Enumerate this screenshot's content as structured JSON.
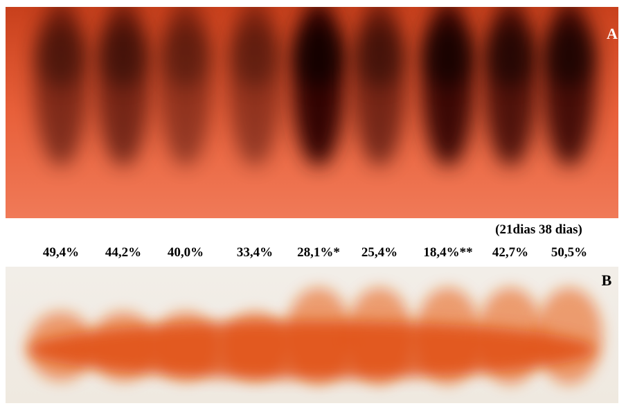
{
  "panel_a": {
    "label": "A"
  },
  "panel_b": {
    "label": "B"
  },
  "note": "(21dias 38 dias)",
  "lanes": [
    "49,4%",
    "44,2%",
    "40,0%",
    "33,4%",
    "28,1%*",
    "25,4%",
    "18,4%**",
    "42,7%",
    "50,5%"
  ]
}
